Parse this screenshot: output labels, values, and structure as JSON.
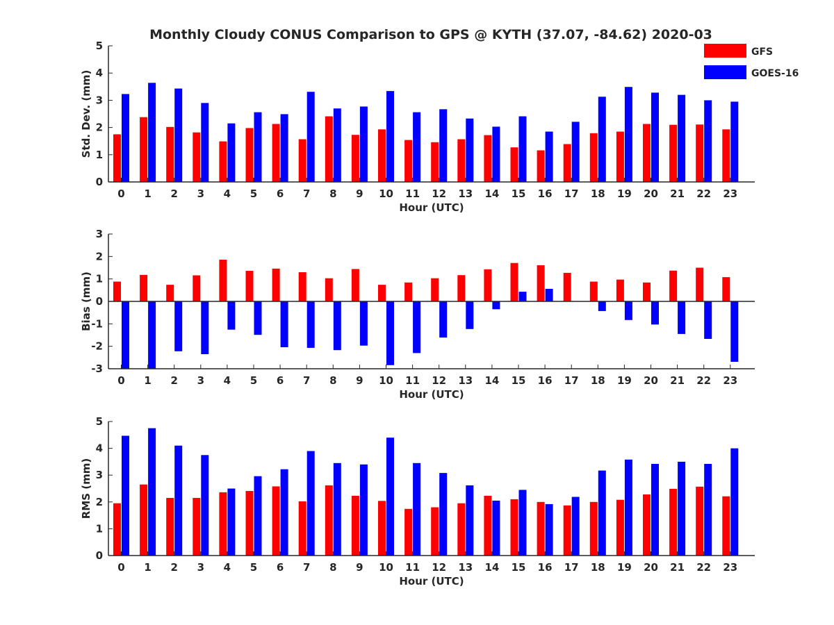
{
  "title": "Monthly Cloudy CONUS Comparison to GPS @ KYTH (37.07, -84.62) 2020-03",
  "legend": {
    "placement": "top-right",
    "entries": [
      {
        "name": "GFS",
        "color": "#ff0000"
      },
      {
        "name": "GOES-16",
        "color": "#0000ff"
      }
    ]
  },
  "chart_data": [
    {
      "type": "bar",
      "ylabel": "Std. Dev. (mm)",
      "xlabel": "Hour (UTC)",
      "ylim": [
        0,
        5
      ],
      "yticks": [
        0,
        1,
        2,
        3,
        4,
        5
      ],
      "grid": false,
      "categories": [
        "0",
        "1",
        "2",
        "3",
        "4",
        "5",
        "6",
        "7",
        "8",
        "9",
        "10",
        "11",
        "12",
        "13",
        "14",
        "15",
        "16",
        "17",
        "18",
        "19",
        "20",
        "21",
        "22",
        "23"
      ],
      "series": [
        {
          "name": "GFS",
          "color": "#ff0000",
          "values": [
            1.75,
            2.38,
            2.02,
            1.82,
            1.49,
            1.98,
            2.13,
            1.57,
            2.41,
            1.73,
            1.93,
            1.54,
            1.46,
            1.57,
            1.72,
            1.27,
            1.16,
            1.39,
            1.79,
            1.85,
            2.13,
            2.1,
            2.11,
            1.93
          ]
        },
        {
          "name": "GOES-16",
          "color": "#0000ff",
          "values": [
            3.23,
            3.64,
            3.43,
            2.9,
            2.15,
            2.56,
            2.49,
            3.31,
            2.7,
            2.77,
            3.34,
            2.56,
            2.67,
            2.33,
            2.03,
            2.41,
            1.85,
            2.21,
            3.13,
            3.49,
            3.28,
            3.2,
            3.0,
            2.95
          ]
        }
      ]
    },
    {
      "type": "bar",
      "ylabel": "Bias (mm)",
      "xlabel": "Hour (UTC)",
      "ylim": [
        -3,
        3
      ],
      "yticks": [
        -3,
        -2,
        -1,
        0,
        1,
        2,
        3
      ],
      "grid": false,
      "zero_line": true,
      "categories": [
        "0",
        "1",
        "2",
        "3",
        "4",
        "5",
        "6",
        "7",
        "8",
        "9",
        "10",
        "11",
        "12",
        "13",
        "14",
        "15",
        "16",
        "17",
        "18",
        "19",
        "20",
        "21",
        "22",
        "23"
      ],
      "series": [
        {
          "name": "GFS",
          "color": "#ff0000",
          "values": [
            0.88,
            1.18,
            0.74,
            1.16,
            1.86,
            1.36,
            1.46,
            1.3,
            1.03,
            1.44,
            0.74,
            0.84,
            1.03,
            1.17,
            1.43,
            1.71,
            1.61,
            1.27,
            0.88,
            0.97,
            0.84,
            1.37,
            1.5,
            1.08
          ]
        },
        {
          "name": "GOES-16",
          "color": "#0000ff",
          "values": [
            -3.0,
            -3.0,
            -2.22,
            -2.35,
            -1.26,
            -1.49,
            -2.04,
            -2.07,
            -2.17,
            -1.97,
            -2.84,
            -2.3,
            -1.61,
            -1.23,
            -0.35,
            0.43,
            0.56,
            0.0,
            -0.43,
            -0.83,
            -1.03,
            -1.45,
            -1.67,
            -2.69
          ]
        }
      ]
    },
    {
      "type": "bar",
      "ylabel": "RMS (mm)",
      "xlabel": "Hour (UTC)",
      "ylim": [
        0,
        5
      ],
      "yticks": [
        0,
        1,
        2,
        3,
        4,
        5
      ],
      "grid": false,
      "categories": [
        "0",
        "1",
        "2",
        "3",
        "4",
        "5",
        "6",
        "7",
        "8",
        "9",
        "10",
        "11",
        "12",
        "13",
        "14",
        "15",
        "16",
        "17",
        "18",
        "19",
        "20",
        "21",
        "22",
        "23"
      ],
      "series": [
        {
          "name": "GFS",
          "color": "#ff0000",
          "values": [
            1.95,
            2.65,
            2.15,
            2.15,
            2.36,
            2.41,
            2.58,
            2.02,
            2.62,
            2.23,
            2.04,
            1.74,
            1.8,
            1.95,
            2.23,
            2.1,
            2.0,
            1.87,
            2.0,
            2.08,
            2.28,
            2.49,
            2.57,
            2.21
          ]
        },
        {
          "name": "GOES-16",
          "color": "#0000ff",
          "values": [
            4.47,
            4.75,
            4.1,
            3.75,
            2.5,
            2.96,
            3.22,
            3.9,
            3.45,
            3.4,
            4.4,
            3.45,
            3.08,
            2.62,
            2.05,
            2.45,
            1.92,
            2.19,
            3.17,
            3.58,
            3.42,
            3.5,
            3.42,
            4.0
          ]
        }
      ]
    }
  ]
}
